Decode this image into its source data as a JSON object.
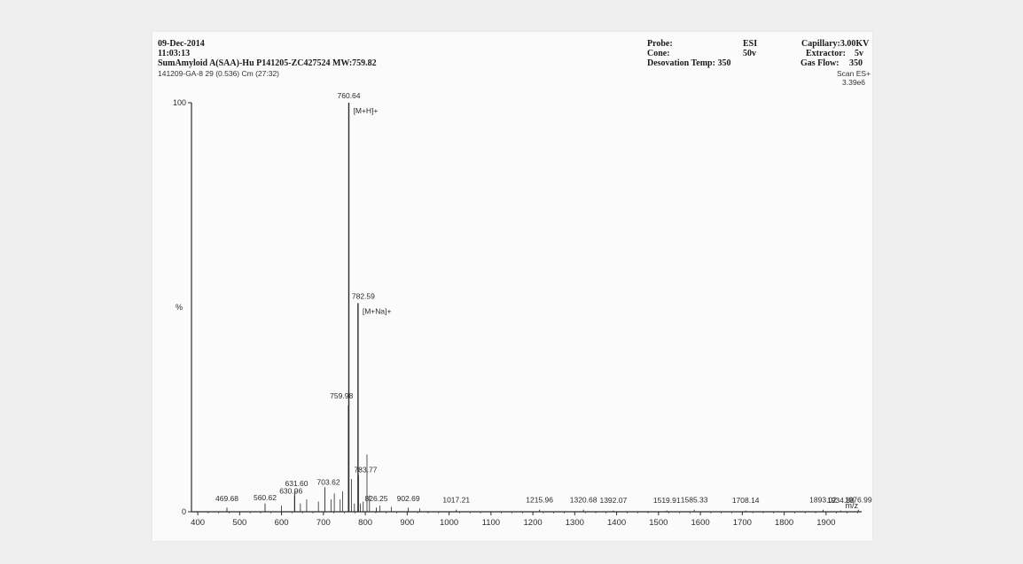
{
  "header": {
    "date": "09-Dec-2014",
    "time": "11:03:13",
    "sample_line": "SumAmyloid A(SAA)-Hu P141205-ZC427524 MW:759.82",
    "scan_info": "141209-GA-8 29 (0.536) Cm (27:32)",
    "probe_label": "Probe:",
    "probe_value": "ESI",
    "cone_label": "Cone:",
    "cone_value": "50v",
    "desolvation_label": "Desovation Temp: 350",
    "capillary": "Capillary:3.00KV",
    "extractor_label": "Extractor:",
    "extractor_value": "5v",
    "gasflow_label": "Gas Flow:",
    "gasflow_value": "350",
    "scan_mode": "Scan ES+",
    "intensity_scale": "3.39e6"
  },
  "chart_data": {
    "type": "bar",
    "title": "",
    "xlabel": "m/z",
    "ylabel": "%",
    "xlim": [
      385,
      1985
    ],
    "ylim": [
      0,
      100
    ],
    "x_ticks": [
      400,
      500,
      600,
      700,
      800,
      900,
      1000,
      1100,
      1200,
      1300,
      1400,
      1500,
      1600,
      1700,
      1800,
      1900
    ],
    "y_ticks": [
      0,
      100
    ],
    "grid": false,
    "peaks": [
      {
        "mz": 469.68,
        "intensity": 1,
        "label": "469.68"
      },
      {
        "mz": 560.62,
        "intensity": 2,
        "label": "560.62"
      },
      {
        "mz": 630.96,
        "intensity": 4,
        "label": "630.96"
      },
      {
        "mz": 631.6,
        "intensity": 5,
        "label": "631.60"
      },
      {
        "mz": 703.62,
        "intensity": 6,
        "label": "703.62"
      },
      {
        "mz": 759.98,
        "intensity": 26,
        "label": "759.98"
      },
      {
        "mz": 760.64,
        "intensity": 100,
        "label": "760.64",
        "annotation": "[M+H]+"
      },
      {
        "mz": 782.59,
        "intensity": 51,
        "label": "782.59",
        "annotation": "[M+Na]+"
      },
      {
        "mz": 783.77,
        "intensity": 9,
        "label": "783.77"
      },
      {
        "mz": 826.25,
        "intensity": 1,
        "label": "826.25"
      },
      {
        "mz": 902.69,
        "intensity": 1,
        "label": "902.69"
      },
      {
        "mz": 1017.21,
        "intensity": 0.5,
        "label": "1017.21"
      },
      {
        "mz": 1215.96,
        "intensity": 0.5,
        "label": "1215.96"
      },
      {
        "mz": 1320.68,
        "intensity": 0.5,
        "label": "1320.68"
      },
      {
        "mz": 1392.07,
        "intensity": 0.3,
        "label": "1392.07"
      },
      {
        "mz": 1519.91,
        "intensity": 0.3,
        "label": "1519.91"
      },
      {
        "mz": 1585.33,
        "intensity": 0.5,
        "label": "1585.33"
      },
      {
        "mz": 1708.14,
        "intensity": 0.3,
        "label": "1708.14"
      },
      {
        "mz": 1893.02,
        "intensity": 0.5,
        "label": "1893.02"
      },
      {
        "mz": 1934.88,
        "intensity": 0.3,
        "label": "1934.88"
      },
      {
        "mz": 1976.99,
        "intensity": 0.5,
        "label": "1976.99"
      }
    ],
    "minor_peaks": [
      {
        "mz": 600,
        "intensity": 1.5
      },
      {
        "mz": 645,
        "intensity": 2
      },
      {
        "mz": 660,
        "intensity": 3
      },
      {
        "mz": 688,
        "intensity": 2.5
      },
      {
        "mz": 718,
        "intensity": 3
      },
      {
        "mz": 726,
        "intensity": 4.5
      },
      {
        "mz": 740,
        "intensity": 3
      },
      {
        "mz": 746,
        "intensity": 5
      },
      {
        "mz": 767,
        "intensity": 8
      },
      {
        "mz": 774,
        "intensity": 2
      },
      {
        "mz": 788,
        "intensity": 2
      },
      {
        "mz": 795,
        "intensity": 2.5
      },
      {
        "mz": 804,
        "intensity": 14
      },
      {
        "mz": 810,
        "intensity": 4
      },
      {
        "mz": 835,
        "intensity": 1.5
      },
      {
        "mz": 862,
        "intensity": 1.2
      },
      {
        "mz": 930,
        "intensity": 0.8
      }
    ],
    "colors": {
      "line": "#2b2b2b",
      "text": "#2a2a2a",
      "paper": "#fbfbfb",
      "background": "#efefef"
    }
  }
}
